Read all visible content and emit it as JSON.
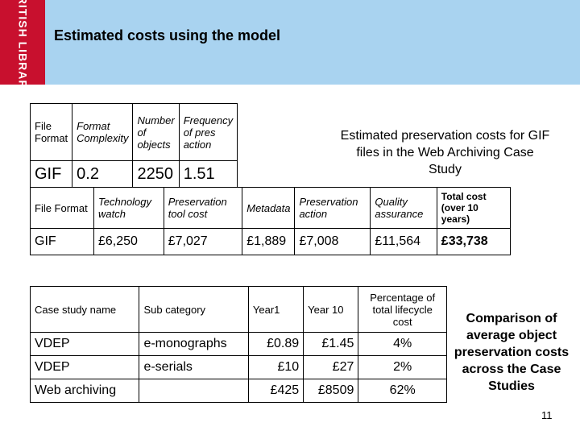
{
  "logo_text": "BRITISH LIBRARY",
  "title": "Estimated costs using the model",
  "table1": {
    "headers": [
      "File Format",
      "Format Complexity",
      "Number of objects",
      "Frequency of pres action"
    ],
    "row": [
      "GIF",
      "0.2",
      "2250",
      "1.51"
    ]
  },
  "caption1": "Estimated preservation costs for GIF files in the Web Archiving Case Study",
  "table2": {
    "headers": [
      "File Format",
      "Technology watch",
      "Preservation tool cost",
      "Metadata",
      "Preservation action",
      "Quality assurance",
      "Total cost (over 10 years)"
    ],
    "row": [
      "GIF",
      "£6,250",
      "£7,027",
      "£1,889",
      "£7,008",
      "£11,564",
      "£33,738"
    ]
  },
  "table3": {
    "headers": [
      "Case study name",
      "Sub category",
      "Year1",
      "Year 10",
      "Percentage of total lifecycle cost"
    ],
    "rows": [
      [
        "VDEP",
        "e-monographs",
        "£0.89",
        "£1.45",
        "4%"
      ],
      [
        "VDEP",
        "e-serials",
        "£10",
        "£27",
        "2%"
      ],
      [
        "Web archiving",
        "",
        "£425",
        "£8509",
        "62%"
      ]
    ]
  },
  "caption2": "Comparison of average object preservation costs across the Case Studies",
  "page_number": "11"
}
